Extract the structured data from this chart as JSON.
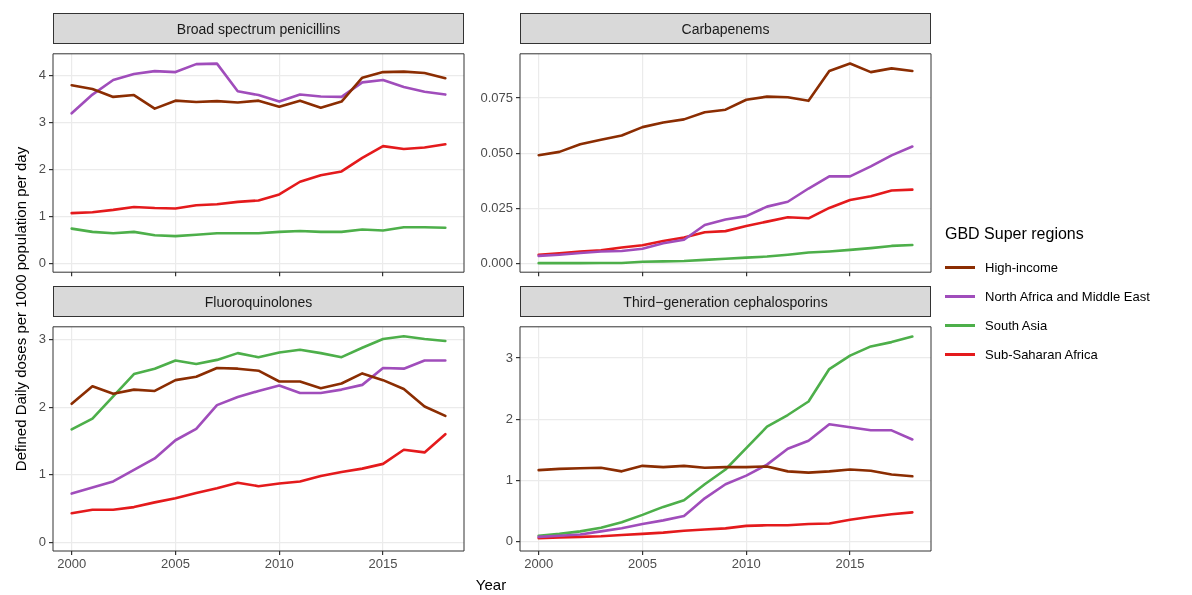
{
  "chart_data": [
    {
      "type": "line",
      "title": "Broad spectrum penicillins",
      "ylabel": "Defined Daily doses per 1000 population per day",
      "x": [
        2000,
        2001,
        2002,
        2003,
        2004,
        2005,
        2006,
        2007,
        2008,
        2009,
        2010,
        2011,
        2012,
        2013,
        2014,
        2015,
        2016,
        2017,
        2018
      ],
      "xlim": [
        1999.1,
        2018.9
      ],
      "xticks": [
        2000,
        2005,
        2010,
        2015
      ],
      "ylim": [
        -0.19,
        4.47
      ],
      "yticks": [
        0,
        1,
        2,
        3,
        4
      ],
      "grid": true,
      "marker": "none",
      "line_style": "solid",
      "tick_labels": "y",
      "series": [
        {
          "color": "#8b2d02",
          "values": [
            3.8,
            3.72,
            3.55,
            3.59,
            3.3,
            3.47,
            3.44,
            3.46,
            3.43,
            3.47,
            3.34,
            3.47,
            3.32,
            3.45,
            3.96,
            4.08,
            4.09,
            4.06,
            3.95
          ]
        },
        {
          "color": "#a04dbb",
          "values": [
            3.2,
            3.6,
            3.91,
            4.04,
            4.1,
            4.08,
            4.25,
            4.26,
            3.67,
            3.59,
            3.45,
            3.6,
            3.56,
            3.55,
            3.86,
            3.91,
            3.76,
            3.66,
            3.6
          ]
        },
        {
          "color": "#4daf4a",
          "values": [
            0.74,
            0.67,
            0.64,
            0.67,
            0.6,
            0.58,
            0.61,
            0.64,
            0.64,
            0.64,
            0.67,
            0.69,
            0.67,
            0.67,
            0.72,
            0.7,
            0.77,
            0.77,
            0.76
          ]
        },
        {
          "color": "#e41a1c",
          "values": [
            1.07,
            1.09,
            1.14,
            1.2,
            1.18,
            1.17,
            1.24,
            1.26,
            1.31,
            1.34,
            1.47,
            1.74,
            1.88,
            1.96,
            2.25,
            2.5,
            2.44,
            2.47,
            2.54
          ]
        }
      ]
    },
    {
      "type": "line",
      "title": "Carbapenems",
      "legend_title": "GBD Super regions",
      "legend": "right",
      "x": [
        2000,
        2001,
        2002,
        2003,
        2004,
        2005,
        2006,
        2007,
        2008,
        2009,
        2010,
        2011,
        2012,
        2013,
        2014,
        2015,
        2016,
        2017,
        2018
      ],
      "xlim": [
        1999.1,
        2018.9
      ],
      "xticks": [
        2000,
        2005,
        2010,
        2015
      ],
      "ylim": [
        -0.0039,
        0.095
      ],
      "yticks": [
        {
          "value": 0,
          "label": "0.000"
        },
        {
          "value": 0.025,
          "label": "0.025"
        },
        {
          "value": 0.05,
          "label": "0.050"
        },
        {
          "value": 0.075,
          "label": "0.075"
        }
      ],
      "grid": true,
      "marker": "none",
      "line_style": "solid",
      "tick_labels": "y",
      "series": [
        {
          "name": "High-income",
          "color": "#8b2d02",
          "values": [
            0.0491,
            0.0506,
            0.054,
            0.0561,
            0.058,
            0.0618,
            0.0639,
            0.0653,
            0.0685,
            0.0697,
            0.0742,
            0.0756,
            0.0753,
            0.0737,
            0.0872,
            0.0906,
            0.0867,
            0.0884,
            0.0872
          ]
        },
        {
          "name": "North Africa and Middle East",
          "color": "#a04dbb",
          "values": [
            0.0035,
            0.004,
            0.0048,
            0.0055,
            0.0057,
            0.0067,
            0.0092,
            0.0108,
            0.0175,
            0.02,
            0.0215,
            0.0258,
            0.028,
            0.034,
            0.0395,
            0.0395,
            0.044,
            0.049,
            0.053
          ]
        },
        {
          "name": "South Asia",
          "color": "#4daf4a",
          "values": [
            0.0002,
            0.0002,
            0.0002,
            0.0003,
            0.0003,
            0.0008,
            0.001,
            0.0012,
            0.0017,
            0.0022,
            0.0027,
            0.0032,
            0.004,
            0.005,
            0.0055,
            0.0062,
            0.007,
            0.008,
            0.0084
          ]
        },
        {
          "name": "Sub-Saharan Africa",
          "color": "#e41a1c",
          "values": [
            0.004,
            0.0047,
            0.0055,
            0.006,
            0.0073,
            0.0083,
            0.0102,
            0.0118,
            0.0142,
            0.0147,
            0.017,
            0.019,
            0.021,
            0.0205,
            0.0252,
            0.0288,
            0.0305,
            0.0331,
            0.0335
          ]
        }
      ]
    },
    {
      "type": "line",
      "title": "Fluoroquinolones",
      "xlabel": "Year",
      "x": [
        2000,
        2001,
        2002,
        2003,
        2004,
        2005,
        2006,
        2007,
        2008,
        2009,
        2010,
        2011,
        2012,
        2013,
        2014,
        2015,
        2016,
        2017,
        2018
      ],
      "xlim": [
        1999.1,
        2018.9
      ],
      "xticks": [
        2000,
        2005,
        2010,
        2015
      ],
      "ylim": [
        -0.13,
        3.19
      ],
      "yticks": [
        0,
        1,
        2,
        3
      ],
      "grid": true,
      "marker": "none",
      "line_style": "solid",
      "series": [
        {
          "color": "#8b2d02",
          "values": [
            2.05,
            2.31,
            2.2,
            2.26,
            2.24,
            2.4,
            2.45,
            2.58,
            2.57,
            2.54,
            2.38,
            2.38,
            2.28,
            2.35,
            2.5,
            2.4,
            2.27,
            2.01,
            1.87
          ]
        },
        {
          "color": "#a04dbb",
          "values": [
            0.72,
            0.81,
            0.9,
            1.07,
            1.24,
            1.51,
            1.68,
            2.03,
            2.15,
            2.24,
            2.32,
            2.21,
            2.21,
            2.26,
            2.33,
            2.58,
            2.57,
            2.69,
            2.69
          ]
        },
        {
          "color": "#4daf4a",
          "values": [
            1.67,
            1.83,
            2.16,
            2.49,
            2.57,
            2.69,
            2.64,
            2.7,
            2.8,
            2.74,
            2.81,
            2.85,
            2.8,
            2.74,
            2.88,
            3.01,
            3.05,
            3.01,
            2.98
          ]
        },
        {
          "color": "#e41a1c",
          "values": [
            0.43,
            0.48,
            0.48,
            0.52,
            0.59,
            0.65,
            0.73,
            0.8,
            0.88,
            0.83,
            0.87,
            0.9,
            0.98,
            1.04,
            1.09,
            1.16,
            1.37,
            1.33,
            1.6
          ]
        }
      ]
    },
    {
      "type": "line",
      "title": "Third−generation cephalosporins",
      "x": [
        2000,
        2001,
        2002,
        2003,
        2004,
        2005,
        2006,
        2007,
        2008,
        2009,
        2010,
        2011,
        2012,
        2013,
        2014,
        2015,
        2016,
        2017,
        2018
      ],
      "xlim": [
        1999.1,
        2018.9
      ],
      "xticks": [
        2000,
        2005,
        2010,
        2015
      ],
      "ylim": [
        -0.15,
        3.51
      ],
      "yticks": [
        0,
        1,
        2,
        3
      ],
      "grid": true,
      "marker": "none",
      "line_style": "solid",
      "series": [
        {
          "color": "#8b2d02",
          "values": [
            1.17,
            1.19,
            1.2,
            1.21,
            1.15,
            1.24,
            1.22,
            1.24,
            1.21,
            1.22,
            1.22,
            1.23,
            1.15,
            1.13,
            1.15,
            1.18,
            1.16,
            1.1,
            1.07
          ]
        },
        {
          "color": "#a04dbb",
          "values": [
            0.08,
            0.1,
            0.12,
            0.17,
            0.22,
            0.29,
            0.35,
            0.42,
            0.71,
            0.94,
            1.08,
            1.26,
            1.52,
            1.65,
            1.92,
            1.87,
            1.82,
            1.82,
            1.67
          ]
        },
        {
          "color": "#4daf4a",
          "values": [
            0.1,
            0.13,
            0.17,
            0.23,
            0.32,
            0.44,
            0.57,
            0.68,
            0.94,
            1.18,
            1.53,
            1.88,
            2.07,
            2.29,
            2.82,
            3.04,
            3.19,
            3.26,
            3.35
          ]
        },
        {
          "color": "#e41a1c",
          "values": [
            0.06,
            0.07,
            0.08,
            0.09,
            0.11,
            0.13,
            0.15,
            0.18,
            0.2,
            0.22,
            0.26,
            0.27,
            0.27,
            0.29,
            0.3,
            0.36,
            0.41,
            0.45,
            0.48
          ]
        }
      ]
    }
  ]
}
